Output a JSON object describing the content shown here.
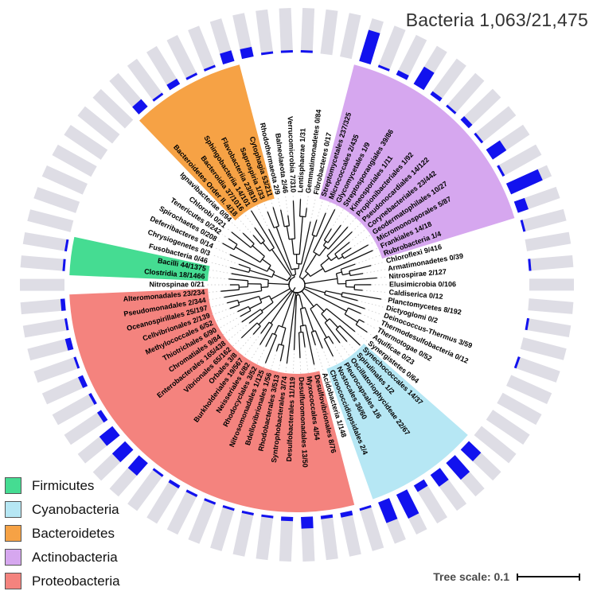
{
  "title": "Bacteria 1,063/21,475",
  "tree_scale": {
    "label": "Tree scale: 0.1"
  },
  "legend": {
    "items": [
      {
        "label": "Firmicutes",
        "color": "#45dc92"
      },
      {
        "label": "Cyanobacteria",
        "color": "#b6e7f4"
      },
      {
        "label": "Bacteroidetes",
        "color": "#f6a245"
      },
      {
        "label": "Actinobacteria",
        "color": "#d6a7ef"
      },
      {
        "label": "Proteobacteria",
        "color": "#f4837e"
      }
    ]
  },
  "colors": {
    "bar_track": "#dedde5",
    "bar_fill": "#1212ee",
    "branch": "#111111",
    "connector": "#c8c8c8"
  },
  "chart_data": {
    "type": "bar",
    "subtype": "circular-phylogram-with-abundance-bars",
    "title": "Bacteria 1,063/21,475",
    "direction": "clockwise",
    "legend_position": "bottom-left",
    "bar_value_note": "blue bar fraction = count/total per leaf",
    "leaves": [
      {
        "name": "Streptomycetales",
        "count": 237,
        "total": 325,
        "group": "Actinobacteria"
      },
      {
        "name": "Micrococcales",
        "count": 2,
        "total": 435,
        "group": "Actinobacteria"
      },
      {
        "name": "Glycomycetales",
        "count": 1,
        "total": 9,
        "group": "Actinobacteria"
      },
      {
        "name": "Streptosporangiales",
        "count": 39,
        "total": 86,
        "group": "Actinobacteria"
      },
      {
        "name": "Kineosporiales",
        "count": 1,
        "total": 11,
        "group": "Actinobacteria"
      },
      {
        "name": "Propionibacteriales",
        "count": 1,
        "total": 92,
        "group": "Actinobacteria"
      },
      {
        "name": "Pseudonocardiales",
        "count": 14,
        "total": 122,
        "group": "Actinobacteria"
      },
      {
        "name": "Corynebacteriales",
        "count": 23,
        "total": 442,
        "group": "Actinobacteria"
      },
      {
        "name": "Geodermatophilales",
        "count": 10,
        "total": 27,
        "group": "Actinobacteria"
      },
      {
        "name": "Micromonosporales",
        "count": 5,
        "total": 87,
        "group": "Actinobacteria"
      },
      {
        "name": "Frankiales",
        "count": 14,
        "total": 18,
        "group": "Actinobacteria"
      },
      {
        "name": "Rubrobacteria",
        "count": 1,
        "total": 4,
        "group": "Actinobacteria"
      },
      {
        "name": "Chloroflexi",
        "count": 9,
        "total": 416,
        "group": null
      },
      {
        "name": "Armatimonadetes",
        "count": 0,
        "total": 39,
        "group": null
      },
      {
        "name": "Nitrospirae",
        "count": 2,
        "total": 127,
        "group": null
      },
      {
        "name": "Elusimicrobia",
        "count": 0,
        "total": 106,
        "group": null
      },
      {
        "name": "Caldiserica",
        "count": 0,
        "total": 12,
        "group": null
      },
      {
        "name": "Planctomycetes",
        "count": 8,
        "total": 192,
        "group": null
      },
      {
        "name": "Dictyoglomi",
        "count": 0,
        "total": 2,
        "group": null
      },
      {
        "name": "Deinococcus-Thermus",
        "count": 3,
        "total": 59,
        "group": null
      },
      {
        "name": "Thermodesulfobacteria",
        "count": 0,
        "total": 12,
        "group": null
      },
      {
        "name": "Thermotogae",
        "count": 0,
        "total": 52,
        "group": null
      },
      {
        "name": "Aquificae",
        "count": 0,
        "total": 23,
        "group": null
      },
      {
        "name": "Synergistetes",
        "count": 0,
        "total": 64,
        "group": null
      },
      {
        "name": "Synechococcales",
        "count": 14,
        "total": 37,
        "group": "Cyanobacteria"
      },
      {
        "name": "Spirulinales",
        "count": 1,
        "total": 2,
        "group": "Cyanobacteria"
      },
      {
        "name": "Oscillatoriophycideae",
        "count": 22,
        "total": 67,
        "group": "Cyanobacteria"
      },
      {
        "name": "Pleurocapsales",
        "count": 1,
        "total": 6,
        "group": "Cyanobacteria"
      },
      {
        "name": "Nostocales",
        "count": 36,
        "total": 60,
        "group": "Cyanobacteria"
      },
      {
        "name": "Chroococcidiopsidales",
        "count": 2,
        "total": 4,
        "group": "Cyanobacteria"
      },
      {
        "name": "Acidobacteria",
        "count": 1,
        "total": 148,
        "group": null
      },
      {
        "name": "Desulfovibrionales",
        "count": 8,
        "total": 76,
        "group": "Proteobacteria"
      },
      {
        "name": "Myxococcales",
        "count": 4,
        "total": 54,
        "group": "Proteobacteria"
      },
      {
        "name": "Desulfuromonadales",
        "count": 13,
        "total": 50,
        "group": "Proteobacteria"
      },
      {
        "name": "Desulfobacterales",
        "count": 11,
        "total": 119,
        "group": "Proteobacteria"
      },
      {
        "name": "Syntrophobacterales",
        "count": 3,
        "total": 74,
        "group": "Proteobacteria"
      },
      {
        "name": "Rhodobacterales",
        "count": 3,
        "total": 513,
        "group": "Proteobacteria"
      },
      {
        "name": "Bdellovibrionales",
        "count": 1,
        "total": 56,
        "group": "Proteobacteria"
      },
      {
        "name": "Nitrosomonadales",
        "count": 1,
        "total": 125,
        "group": "Proteobacteria"
      },
      {
        "name": "Rhodocyclales",
        "count": 3,
        "total": 52,
        "group": "Proteobacteria"
      },
      {
        "name": "Neisseriales",
        "count": 6,
        "total": 82,
        "group": "Proteobacteria"
      },
      {
        "name": "Burkholderiales",
        "count": 19,
        "total": 567,
        "group": "Proteobacteria"
      },
      {
        "name": "Orbales",
        "count": 3,
        "total": 8,
        "group": "Proteobacteria"
      },
      {
        "name": "Vibrionales",
        "count": 65,
        "total": 162,
        "group": "Proteobacteria"
      },
      {
        "name": "Enterobacterales",
        "count": 165,
        "total": 438,
        "group": "Proteobacteria"
      },
      {
        "name": "Chromatiales",
        "count": 9,
        "total": 84,
        "group": "Proteobacteria"
      },
      {
        "name": "Thiotrichales",
        "count": 6,
        "total": 90,
        "group": "Proteobacteria"
      },
      {
        "name": "Methylococcales",
        "count": 6,
        "total": 52,
        "group": "Proteobacteria"
      },
      {
        "name": "Cellvibrionales",
        "count": 2,
        "total": 139,
        "group": "Proteobacteria"
      },
      {
        "name": "Oceanospirillales",
        "count": 25,
        "total": 197,
        "group": "Proteobacteria"
      },
      {
        "name": "Pseudomonadales",
        "count": 2,
        "total": 344,
        "group": "Proteobacteria"
      },
      {
        "name": "Alteromonadales",
        "count": 23,
        "total": 234,
        "group": "Proteobacteria"
      },
      {
        "name": "Nitrospinae",
        "count": 0,
        "total": 21,
        "group": null
      },
      {
        "name": "Clostridia",
        "count": 18,
        "total": 1466,
        "group": "Firmicutes"
      },
      {
        "name": "Bacilli",
        "count": 44,
        "total": 1375,
        "group": "Firmicutes"
      },
      {
        "name": "Fusobacteria",
        "count": 0,
        "total": 46,
        "group": null
      },
      {
        "name": "Chrysiogenetes",
        "count": 0,
        "total": 3,
        "group": null
      },
      {
        "name": "Deferribacteres",
        "count": 0,
        "total": 14,
        "group": null
      },
      {
        "name": "Spirochaetes",
        "count": 0,
        "total": 208,
        "group": null
      },
      {
        "name": "Tenericutes",
        "count": 0,
        "total": 242,
        "group": null
      },
      {
        "name": "Chlorobi",
        "count": 0,
        "total": 21,
        "group": null
      },
      {
        "name": "Ignavibacteriae",
        "count": 0,
        "total": 94,
        "group": null
      },
      {
        "name": "Bacteroidetes Order II.",
        "count": 4,
        "total": 18,
        "group": "Bacteroidetes"
      },
      {
        "name": "Bacteroidia",
        "count": 37,
        "total": 1016,
        "group": "Bacteroidetes"
      },
      {
        "name": "Sphingobacteriia",
        "count": 14,
        "total": 101,
        "group": "Bacteroidetes"
      },
      {
        "name": "Flavobacteriia",
        "count": 23,
        "total": 810,
        "group": "Bacteroidetes"
      },
      {
        "name": "Saprospiria",
        "count": 1,
        "total": 33,
        "group": "Bacteroidetes"
      },
      {
        "name": "Cytophagia",
        "count": 53,
        "total": 211,
        "group": "Bacteroidetes"
      },
      {
        "name": "Rhodothermaeota",
        "count": 2,
        "total": 9,
        "group": null
      },
      {
        "name": "Balneolaeota",
        "count": 2,
        "total": 46,
        "group": null
      },
      {
        "name": "Verrucomicrobia",
        "count": 7,
        "total": 310,
        "group": null
      },
      {
        "name": "Lentisphaerae",
        "count": 1,
        "total": 31,
        "group": null
      },
      {
        "name": "Gemmatimonadetes",
        "count": 0,
        "total": 84,
        "group": null
      },
      {
        "name": "Fibrobacteres",
        "count": 0,
        "total": 17,
        "group": null
      }
    ]
  }
}
